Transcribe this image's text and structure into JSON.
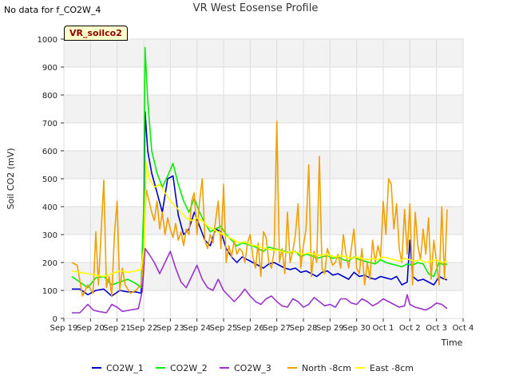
{
  "header": {
    "nodata_text": "No data for f_CO2W_4",
    "badge_label": "VR_soilco2"
  },
  "chart_data": {
    "type": "line",
    "title": "VR West Eosense Profile",
    "xlabel": "Time",
    "ylabel": "Soil CO2 (mV)",
    "ylim": [
      0,
      1000
    ],
    "yticks": [
      0,
      100,
      200,
      300,
      400,
      500,
      600,
      700,
      800,
      900,
      1000
    ],
    "xlim": [
      0,
      15
    ],
    "xticks": [
      "Sep 19",
      "Sep 20",
      "Sep 21",
      "Sep 22",
      "Sep 23",
      "Sep 24",
      "Sep 25",
      "Sep 26",
      "Sep 27",
      "Sep 28",
      "Sep 29",
      "Sep 30",
      "Oct 1",
      "Oct 2",
      "Oct 3",
      "Oct 4"
    ],
    "grid": true,
    "legend_position": "bottom",
    "series": [
      {
        "name": "CO2W_1",
        "color": "#0000cc",
        "x": [
          0.3,
          0.6,
          0.9,
          1.2,
          1.5,
          1.8,
          2.1,
          2.4,
          2.7,
          2.9,
          3.0,
          3.05,
          3.15,
          3.3,
          3.5,
          3.7,
          3.9,
          4.1,
          4.3,
          4.5,
          4.7,
          4.9,
          5.1,
          5.3,
          5.5,
          5.7,
          5.9,
          6.1,
          6.3,
          6.5,
          6.7,
          6.9,
          7.1,
          7.3,
          7.5,
          7.7,
          7.9,
          8.1,
          8.3,
          8.5,
          8.7,
          8.9,
          9.1,
          9.3,
          9.5,
          9.7,
          9.9,
          10.1,
          10.3,
          10.5,
          10.7,
          10.9,
          11.1,
          11.3,
          11.5,
          11.7,
          11.9,
          12.1,
          12.3,
          12.5,
          12.7,
          12.9,
          13.0,
          13.1,
          13.3,
          13.5,
          13.7,
          13.9,
          14.1,
          14.3,
          14.4
        ],
        "y": [
          105,
          105,
          85,
          100,
          105,
          80,
          100,
          95,
          95,
          90,
          300,
          740,
          600,
          520,
          450,
          380,
          500,
          510,
          370,
          300,
          320,
          380,
          330,
          280,
          260,
          320,
          310,
          250,
          220,
          200,
          220,
          210,
          200,
          190,
          180,
          195,
          200,
          190,
          180,
          175,
          180,
          165,
          170,
          160,
          150,
          165,
          170,
          155,
          160,
          150,
          140,
          165,
          150,
          155,
          145,
          140,
          150,
          145,
          140,
          150,
          120,
          130,
          280,
          150,
          135,
          140,
          130,
          120,
          150,
          140,
          138
        ]
      },
      {
        "name": "CO2W_2",
        "color": "#00ee00",
        "x": [
          0.3,
          0.6,
          0.9,
          1.2,
          1.5,
          1.8,
          2.1,
          2.4,
          2.7,
          2.9,
          3.0,
          3.05,
          3.15,
          3.3,
          3.5,
          3.7,
          3.9,
          4.1,
          4.3,
          4.5,
          4.7,
          4.9,
          5.1,
          5.3,
          5.5,
          5.7,
          5.9,
          6.1,
          6.3,
          6.5,
          6.7,
          6.9,
          7.1,
          7.3,
          7.5,
          7.7,
          7.9,
          8.1,
          8.3,
          8.5,
          8.7,
          8.9,
          9.1,
          9.3,
          9.5,
          9.7,
          9.9,
          10.1,
          10.3,
          10.5,
          10.7,
          10.9,
          11.1,
          11.3,
          11.5,
          11.7,
          11.9,
          12.1,
          12.3,
          12.5,
          12.7,
          12.9,
          13.1,
          13.3,
          13.5,
          13.7,
          13.9,
          14.1,
          14.3,
          14.4
        ],
        "y": [
          150,
          130,
          110,
          145,
          150,
          120,
          130,
          140,
          125,
          110,
          400,
          970,
          780,
          600,
          520,
          470,
          510,
          555,
          480,
          420,
          380,
          430,
          380,
          340,
          310,
          320,
          330,
          300,
          280,
          260,
          270,
          265,
          260,
          250,
          240,
          255,
          250,
          245,
          240,
          235,
          240,
          220,
          230,
          225,
          215,
          220,
          225,
          215,
          220,
          210,
          205,
          220,
          210,
          205,
          200,
          195,
          210,
          200,
          195,
          190,
          185,
          195,
          190,
          200,
          195,
          160,
          150,
          200,
          190,
          195
        ]
      },
      {
        "name": "CO2W_3",
        "color": "#9933cc",
        "x": [
          0.3,
          0.6,
          0.9,
          1.1,
          1.3,
          1.6,
          1.8,
          2.0,
          2.2,
          2.5,
          2.8,
          2.95,
          3.05,
          3.2,
          3.4,
          3.6,
          3.8,
          4.0,
          4.2,
          4.4,
          4.6,
          4.8,
          5.0,
          5.2,
          5.4,
          5.6,
          5.8,
          6.0,
          6.2,
          6.4,
          6.6,
          6.8,
          7.0,
          7.2,
          7.4,
          7.6,
          7.8,
          8.0,
          8.2,
          8.4,
          8.6,
          8.8,
          9.0,
          9.2,
          9.4,
          9.6,
          9.8,
          10.0,
          10.2,
          10.4,
          10.6,
          10.8,
          11.0,
          11.2,
          11.4,
          11.6,
          11.8,
          12.0,
          12.2,
          12.4,
          12.6,
          12.8,
          12.9,
          13.0,
          13.2,
          13.4,
          13.6,
          13.8,
          14.0,
          14.2,
          14.4
        ],
        "y": [
          20,
          20,
          50,
          30,
          25,
          20,
          50,
          40,
          25,
          30,
          35,
          100,
          250,
          230,
          200,
          160,
          200,
          240,
          180,
          130,
          110,
          150,
          190,
          140,
          110,
          100,
          140,
          100,
          80,
          60,
          80,
          105,
          80,
          60,
          50,
          70,
          80,
          60,
          45,
          40,
          70,
          60,
          40,
          50,
          75,
          60,
          45,
          50,
          40,
          70,
          70,
          55,
          50,
          70,
          60,
          45,
          55,
          70,
          60,
          50,
          40,
          45,
          85,
          50,
          40,
          35,
          30,
          40,
          55,
          50,
          35
        ]
      },
      {
        "name": "North -8cm",
        "color": "#f0a000",
        "x": [
          0.3,
          0.5,
          0.7,
          0.9,
          1.1,
          1.2,
          1.3,
          1.5,
          1.6,
          1.7,
          1.8,
          1.9,
          2.0,
          2.1,
          2.2,
          2.3,
          2.5,
          2.7,
          2.9,
          3.0,
          3.05,
          3.1,
          3.2,
          3.3,
          3.4,
          3.5,
          3.6,
          3.7,
          3.8,
          3.9,
          4.0,
          4.1,
          4.2,
          4.3,
          4.4,
          4.5,
          4.6,
          4.7,
          4.8,
          4.9,
          5.0,
          5.1,
          5.2,
          5.3,
          5.4,
          5.5,
          5.6,
          5.7,
          5.8,
          5.9,
          6.0,
          6.1,
          6.2,
          6.3,
          6.4,
          6.5,
          6.6,
          6.7,
          6.8,
          6.9,
          7.0,
          7.1,
          7.2,
          7.3,
          7.4,
          7.5,
          7.6,
          7.7,
          7.8,
          7.9,
          8.0,
          8.1,
          8.2,
          8.3,
          8.4,
          8.5,
          8.6,
          8.7,
          8.8,
          8.9,
          9.0,
          9.1,
          9.2,
          9.3,
          9.4,
          9.5,
          9.6,
          9.7,
          9.8,
          9.9,
          10.0,
          10.1,
          10.2,
          10.3,
          10.4,
          10.5,
          10.6,
          10.7,
          10.8,
          10.9,
          11.0,
          11.1,
          11.2,
          11.3,
          11.4,
          11.5,
          11.6,
          11.7,
          11.8,
          11.9,
          12.0,
          12.1,
          12.2,
          12.3,
          12.4,
          12.5,
          12.6,
          12.7,
          12.8,
          12.9,
          13.0,
          13.1,
          13.2,
          13.3,
          13.4,
          13.5,
          13.6,
          13.7,
          13.8,
          13.9,
          14.0,
          14.1,
          14.2,
          14.3,
          14.4
        ],
        "y": [
          200,
          190,
          80,
          120,
          90,
          310,
          120,
          495,
          110,
          150,
          80,
          300,
          420,
          100,
          180,
          120,
          90,
          100,
          120,
          220,
          380,
          460,
          420,
          380,
          350,
          420,
          320,
          380,
          300,
          360,
          320,
          290,
          340,
          280,
          310,
          260,
          320,
          300,
          420,
          450,
          300,
          420,
          500,
          280,
          250,
          300,
          270,
          350,
          420,
          250,
          480,
          200,
          260,
          220,
          280,
          230,
          250,
          240,
          200,
          270,
          300,
          220,
          180,
          270,
          150,
          310,
          290,
          200,
          180,
          240,
          706,
          200,
          250,
          160,
          380,
          200,
          240,
          300,
          410,
          180,
          260,
          320,
          550,
          150,
          240,
          200,
          580,
          180,
          160,
          250,
          220,
          190,
          200,
          230,
          180,
          300,
          230,
          180,
          250,
          320,
          180,
          160,
          250,
          120,
          200,
          140,
          280,
          200,
          260,
          220,
          420,
          300,
          500,
          480,
          320,
          410,
          250,
          200,
          390,
          230,
          410,
          120,
          380,
          260,
          210,
          320,
          230,
          360,
          140,
          280,
          200,
          120,
          400,
          140,
          390
        ]
      },
      {
        "name": "East -8cm",
        "color": "#ffff00",
        "x": [
          0.3,
          0.6,
          0.9,
          1.2,
          1.5,
          1.8,
          2.1,
          2.4,
          2.7,
          2.9,
          3.0,
          3.1,
          3.2,
          3.4,
          3.6,
          3.8,
          4.0,
          4.2,
          4.4,
          4.6,
          4.8,
          5.0,
          5.2,
          5.4,
          5.6,
          5.8,
          6.0,
          6.2,
          6.4,
          6.6,
          6.8,
          7.0,
          7.2,
          7.4,
          7.6,
          7.8,
          8.0,
          8.2,
          8.4,
          8.6,
          8.8,
          9.0,
          9.2,
          9.4,
          9.6,
          9.8,
          10.0,
          10.2,
          10.4,
          10.6,
          10.8,
          11.0,
          11.2,
          11.4,
          11.6,
          11.8,
          12.0,
          12.2,
          12.4,
          12.6,
          12.8,
          13.0,
          13.2,
          13.4,
          13.6,
          13.8,
          14.0,
          14.2,
          14.4
        ],
        "y": [
          170,
          165,
          160,
          155,
          150,
          160,
          170,
          165,
          170,
          175,
          250,
          560,
          500,
          470,
          480,
          450,
          420,
          400,
          380,
          360,
          350,
          360,
          350,
          330,
          320,
          310,
          300,
          290,
          280,
          270,
          275,
          265,
          260,
          255,
          250,
          245,
          245,
          240,
          235,
          240,
          235,
          230,
          235,
          230,
          225,
          230,
          225,
          220,
          225,
          220,
          215,
          220,
          215,
          210,
          215,
          210,
          220,
          215,
          210,
          205,
          215,
          210,
          205,
          210,
          200,
          205,
          210,
          200,
          205
        ]
      }
    ]
  }
}
